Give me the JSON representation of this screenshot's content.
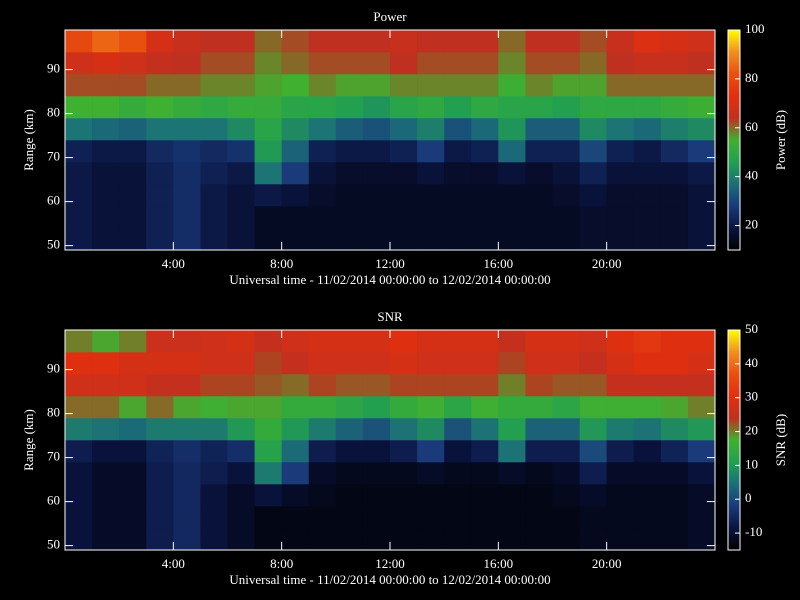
{
  "chart_data": [
    {
      "type": "heatmap",
      "title": "Power",
      "xlabel": "Universal time - 11/02/2014 00:00:00 to 12/02/2014 00:00:00",
      "ylabel": "Range (km)",
      "colorbar_label": "Power (dB)",
      "xlim": [
        0,
        24
      ],
      "ylim": [
        49,
        99
      ],
      "clim": [
        10,
        100
      ],
      "xticks": [
        {
          "value": 4,
          "label": "4:00"
        },
        {
          "value": 8,
          "label": "8:00"
        },
        {
          "value": 12,
          "label": "12:00"
        },
        {
          "value": 16,
          "label": "16:00"
        },
        {
          "value": 20,
          "label": "20:00"
        }
      ],
      "yticks": [
        50,
        60,
        70,
        80,
        90
      ],
      "cticks": [
        20,
        40,
        60,
        80,
        100
      ],
      "colormap": [
        "#000000",
        "#0a1440",
        "#1a3a7a",
        "#1b6e78",
        "#22a050",
        "#40b030",
        "#c03020",
        "#e03010",
        "#e85010",
        "#f09020",
        "#ffff00"
      ],
      "x_bins": [
        0,
        1,
        2,
        3,
        4,
        5,
        6,
        7,
        8,
        9,
        10,
        11,
        12,
        13,
        14,
        15,
        16,
        17,
        18,
        19,
        20,
        21,
        22,
        23,
        24
      ],
      "y_bins": [
        49,
        54,
        59,
        64,
        69,
        74,
        79,
        84,
        89,
        94,
        99
      ],
      "values": [
        [
          20,
          20,
          20,
          20,
          22,
          38,
          55,
          62,
          68,
          80
        ],
        [
          18,
          18,
          18,
          18,
          20,
          36,
          55,
          62,
          70,
          85
        ],
        [
          18,
          18,
          18,
          18,
          20,
          35,
          52,
          62,
          68,
          82
        ],
        [
          22,
          22,
          22,
          22,
          24,
          38,
          55,
          60,
          65,
          70
        ],
        [
          25,
          25,
          25,
          25,
          26,
          38,
          52,
          60,
          64,
          66
        ],
        [
          20,
          20,
          20,
          22,
          24,
          38,
          50,
          58,
          62,
          64
        ],
        [
          18,
          18,
          18,
          20,
          26,
          42,
          52,
          58,
          62,
          64
        ],
        [
          15,
          15,
          20,
          38,
          45,
          48,
          52,
          56,
          58,
          60
        ],
        [
          15,
          15,
          18,
          28,
          35,
          42,
          48,
          55,
          60,
          62
        ],
        [
          15,
          15,
          16,
          18,
          22,
          38,
          48,
          58,
          62,
          64
        ],
        [
          15,
          15,
          15,
          16,
          20,
          34,
          46,
          56,
          62,
          64
        ],
        [
          15,
          15,
          15,
          16,
          20,
          32,
          44,
          56,
          62,
          64
        ],
        [
          15,
          15,
          15,
          16,
          22,
          36,
          48,
          58,
          64,
          66
        ],
        [
          15,
          15,
          15,
          18,
          28,
          40,
          50,
          58,
          62,
          64
        ],
        [
          15,
          15,
          15,
          16,
          20,
          32,
          46,
          58,
          62,
          64
        ],
        [
          15,
          15,
          15,
          16,
          22,
          36,
          50,
          58,
          62,
          64
        ],
        [
          15,
          15,
          15,
          18,
          36,
          44,
          48,
          54,
          58,
          60
        ],
        [
          15,
          15,
          15,
          16,
          22,
          34,
          48,
          58,
          62,
          64
        ],
        [
          15,
          15,
          16,
          18,
          22,
          34,
          46,
          56,
          62,
          64
        ],
        [
          16,
          16,
          18,
          22,
          30,
          42,
          50,
          56,
          60,
          62
        ],
        [
          16,
          16,
          16,
          18,
          22,
          38,
          50,
          60,
          64,
          66
        ],
        [
          16,
          16,
          16,
          18,
          20,
          36,
          50,
          60,
          66,
          72
        ],
        [
          16,
          16,
          16,
          18,
          24,
          40,
          52,
          60,
          66,
          70
        ],
        [
          18,
          18,
          18,
          20,
          28,
          42,
          54,
          60,
          64,
          68
        ]
      ]
    },
    {
      "type": "heatmap",
      "title": "SNR",
      "xlabel": "Universal time - 11/02/2014 00:00:00 to 12/02/2014 00:00:00",
      "ylabel": "Range (km)",
      "colorbar_label": "SNR (dB)",
      "xlim": [
        0,
        24
      ],
      "ylim": [
        49,
        99
      ],
      "clim": [
        -15,
        50
      ],
      "xticks": [
        {
          "value": 4,
          "label": "4:00"
        },
        {
          "value": 8,
          "label": "8:00"
        },
        {
          "value": 12,
          "label": "12:00"
        },
        {
          "value": 16,
          "label": "16:00"
        },
        {
          "value": 20,
          "label": "20:00"
        }
      ],
      "yticks": [
        50,
        60,
        70,
        80,
        90
      ],
      "cticks": [
        -10,
        0,
        10,
        20,
        30,
        40,
        50
      ],
      "colormap": [
        "#000000",
        "#0a1440",
        "#1a3a7a",
        "#1b6e78",
        "#22a050",
        "#40b030",
        "#c03020",
        "#e03010",
        "#e85010",
        "#f09020",
        "#ffff00"
      ],
      "x_bins": [
        0,
        1,
        2,
        3,
        4,
        5,
        6,
        7,
        8,
        9,
        10,
        11,
        12,
        13,
        14,
        15,
        16,
        17,
        18,
        19,
        20,
        21,
        22,
        23,
        24
      ],
      "y_bins": [
        49,
        54,
        59,
        64,
        69,
        74,
        79,
        84,
        89,
        94,
        99
      ],
      "values": [
        [
          -9,
          -9,
          -9,
          -9,
          -7,
          6,
          21,
          27,
          30,
          20
        ],
        [
          -11,
          -11,
          -11,
          -11,
          -9,
          5,
          21,
          27,
          30,
          18
        ],
        [
          -11,
          -11,
          -11,
          -11,
          -9,
          4,
          18,
          27,
          28,
          20
        ],
        [
          -7,
          -7,
          -7,
          -7,
          -6,
          6,
          21,
          25,
          28,
          26
        ],
        [
          -5,
          -5,
          -5,
          -5,
          -4,
          6,
          18,
          25,
          28,
          26
        ],
        [
          -9,
          -9,
          -9,
          -7,
          -6,
          6,
          17,
          23,
          27,
          27
        ],
        [
          -11,
          -11,
          -11,
          -9,
          -4,
          10,
          18,
          23,
          27,
          28
        ],
        [
          -13,
          -13,
          -9,
          6,
          12,
          15,
          18,
          22,
          23,
          25
        ],
        [
          -13,
          -13,
          -11,
          -2,
          4,
          10,
          15,
          21,
          25,
          27
        ],
        [
          -13,
          -13,
          -12,
          -11,
          -7,
          6,
          15,
          23,
          27,
          28
        ],
        [
          -13,
          -13,
          -13,
          -12,
          -9,
          3,
          13,
          22,
          27,
          28
        ],
        [
          -13,
          -13,
          -13,
          -12,
          -9,
          1,
          11,
          22,
          27,
          28
        ],
        [
          -13,
          -13,
          -13,
          -12,
          -7,
          5,
          15,
          23,
          28,
          30
        ],
        [
          -13,
          -13,
          -13,
          -11,
          -2,
          8,
          17,
          23,
          27,
          28
        ],
        [
          -13,
          -13,
          -13,
          -12,
          -9,
          1,
          13,
          23,
          27,
          28
        ],
        [
          -13,
          -13,
          -13,
          -12,
          -7,
          5,
          17,
          23,
          27,
          28
        ],
        [
          -13,
          -13,
          -13,
          -11,
          5,
          11,
          15,
          20,
          23,
          25
        ],
        [
          -13,
          -13,
          -13,
          -12,
          -7,
          3,
          15,
          23,
          27,
          28
        ],
        [
          -13,
          -13,
          -12,
          -11,
          -7,
          3,
          13,
          22,
          27,
          28
        ],
        [
          -12,
          -12,
          -11,
          -7,
          0,
          10,
          17,
          22,
          25,
          27
        ],
        [
          -12,
          -12,
          -12,
          -11,
          -7,
          6,
          17,
          25,
          28,
          30
        ],
        [
          -12,
          -12,
          -12,
          -11,
          -9,
          5,
          17,
          25,
          30,
          32
        ],
        [
          -12,
          -12,
          -12,
          -11,
          -6,
          8,
          18,
          25,
          30,
          30
        ],
        [
          -11,
          -11,
          -11,
          -9,
          -2,
          10,
          20,
          25,
          28,
          30
        ]
      ]
    }
  ]
}
